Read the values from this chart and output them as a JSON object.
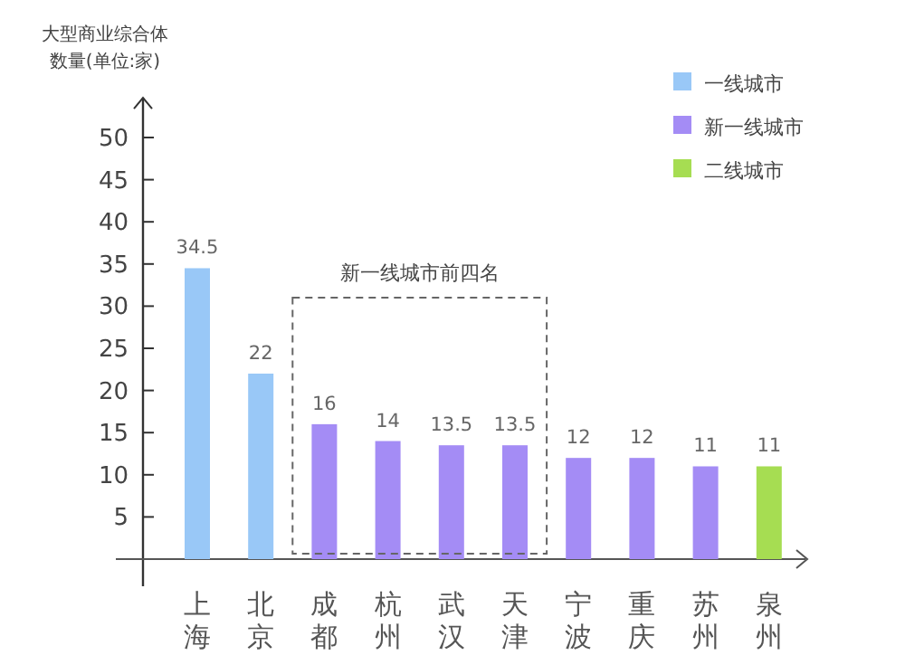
{
  "chart_data": {
    "type": "bar",
    "ylabel": "大型商业综合体数量(单位:家)",
    "categories": [
      "上海",
      "北京",
      "成都",
      "杭州",
      "武汉",
      "天津",
      "宁波",
      "重庆",
      "苏州",
      "泉州"
    ],
    "series": [
      {
        "name": "一线城市",
        "color": "#99c8f7",
        "values": [
          34.5,
          22,
          null,
          null,
          null,
          null,
          null,
          null,
          null,
          null
        ]
      },
      {
        "name": "新一线城市",
        "color": "#a48cf5",
        "values": [
          null,
          null,
          16,
          14,
          13.5,
          13.5,
          12,
          12,
          11,
          null
        ]
      },
      {
        "name": "二线城市",
        "color": "#a6dd52",
        "values": [
          null,
          null,
          null,
          null,
          null,
          null,
          null,
          null,
          null,
          11
        ]
      }
    ],
    "ylim": [
      0,
      53
    ],
    "yticks": [
      5,
      10,
      15,
      20,
      25,
      30,
      35,
      40,
      45,
      50
    ],
    "data_labels": true,
    "legend": "top right",
    "annotations": [
      "新一线城市前四名"
    ]
  }
}
